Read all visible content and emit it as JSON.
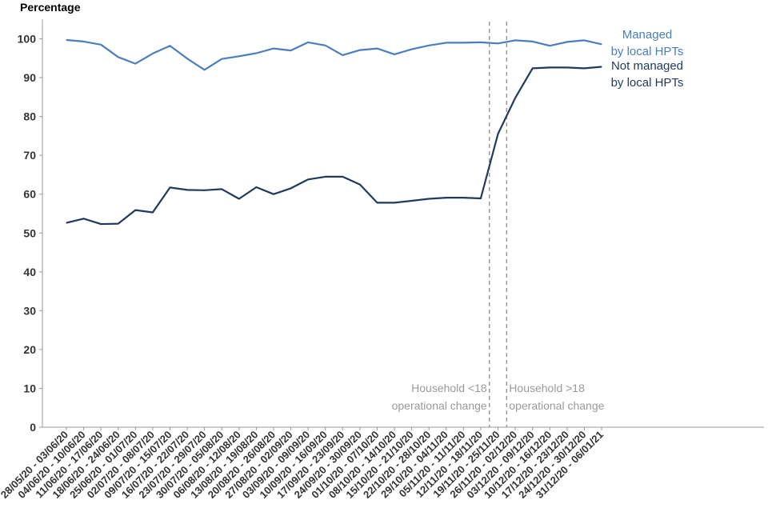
{
  "chart_data": {
    "type": "line",
    "ylabel": "Percentage",
    "ylim": [
      0,
      105
    ],
    "yticks": [
      0,
      10,
      20,
      30,
      40,
      50,
      60,
      70,
      80,
      90,
      100
    ],
    "grid": false,
    "categories": [
      "28/05/20 - 03/06/20",
      "04/06/20 - 10/06/20",
      "11/06/20 - 17/06/20",
      "18/06/20 - 24/06/20",
      "25/06/20 - 01/07/20",
      "02/07/20 - 08/07/20",
      "09/07/20 - 15/07/20",
      "16/07/20 - 22/07/20",
      "23/07/20 - 29/07/20",
      "30/07/20 - 05/08/20",
      "06/08/20 - 12/08/20",
      "13/08/20 - 19/08/20",
      "20/08/20 - 26/08/20",
      "27/08/20 - 02/09/20",
      "03/09/20 - 09/09/20",
      "10/09/20 - 16/09/20",
      "17/09/20 - 23/09/20",
      "24/09/20 - 30/09/20",
      "01/10/20 - 07/10/20",
      "08/10/20 - 14/10/20",
      "15/10/20 - 21/10/20",
      "22/10/20 - 28/10/20",
      "29/10/20 - 04/11/20",
      "05/11/20 - 11/11/20",
      "12/11/20 - 18/11/20",
      "19/11/20 - 25/11/20",
      "26/11/20 - 02/12/20",
      "03/12/20 - 09/12/20",
      "10/12/20 - 16/12/20",
      "17/12/20 - 23/12/20",
      "24/12/20 - 30/12/20",
      "31/12/20 - 06/01/21"
    ],
    "series": [
      {
        "name": "Managed by local HPTs",
        "label_lines": [
          "Managed",
          "by local HPTs"
        ],
        "color": "#4a7ebf",
        "values": [
          99.7,
          99.3,
          98.5,
          95.3,
          93.6,
          96.2,
          98.2,
          94.9,
          92.0,
          94.8,
          95.5,
          96.3,
          97.5,
          97.0,
          99.1,
          98.3,
          95.8,
          97.1,
          97.5,
          96.0,
          97.3,
          98.3,
          99.0,
          99.0,
          99.1,
          98.8,
          99.6,
          99.3,
          98.2,
          99.2,
          99.6,
          98.6
        ]
      },
      {
        "name": "Not managed by local HPTs",
        "label_lines": [
          "Not managed",
          "by local HPTs"
        ],
        "color": "#1f3a5f",
        "values": [
          52.6,
          53.7,
          52.3,
          52.4,
          55.9,
          55.3,
          61.7,
          61.1,
          61.0,
          61.3,
          58.8,
          61.8,
          60.0,
          61.5,
          63.8,
          64.5,
          64.5,
          62.5,
          57.8,
          57.8,
          58.3,
          58.8,
          59.1,
          59.1,
          58.9,
          75.5,
          84.8,
          92.4,
          92.6,
          92.6,
          92.4,
          92.8
        ]
      }
    ],
    "annotations": [
      {
        "after_index": 24,
        "lines": [
          "Household <18",
          "operational change"
        ],
        "side": "left"
      },
      {
        "after_index": 25,
        "lines": [
          "Household >18",
          "operational change"
        ],
        "side": "right"
      }
    ],
    "annotation_color": "#9a9a9a",
    "axis_color": "#999999"
  }
}
